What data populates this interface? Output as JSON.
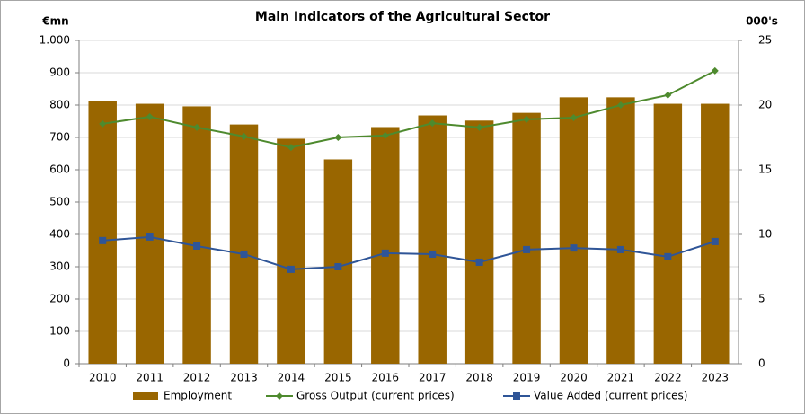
{
  "chart_data": {
    "type": "combo",
    "title": "Main Indicators of the Agricultural Sector",
    "y_label": "€mn",
    "y2_label": "000's",
    "categories": [
      "2010",
      "2011",
      "2012",
      "2013",
      "2014",
      "2015",
      "2016",
      "2017",
      "2018",
      "2019",
      "2020",
      "2021",
      "2022",
      "2023"
    ],
    "series": [
      {
        "name": "Employment",
        "type": "bar",
        "axis": "y2",
        "color": "#996600",
        "values": [
          20.3,
          20.1,
          19.9,
          18.5,
          17.4,
          15.8,
          18.3,
          19.2,
          18.8,
          19.4,
          20.6,
          20.6,
          20.1,
          20.1
        ]
      },
      {
        "name": "Gross Output (current prices)",
        "type": "line",
        "marker": "diamond",
        "color": "#4e8a2e",
        "values": [
          742,
          764,
          731,
          703,
          669,
          700,
          706,
          744,
          731,
          756,
          761,
          800,
          831,
          906
        ]
      },
      {
        "name": "Value Added (current prices)",
        "type": "line",
        "marker": "square",
        "color": "#2f5597",
        "values": [
          381,
          392,
          364,
          339,
          292,
          300,
          342,
          339,
          314,
          353,
          358,
          353,
          331,
          378
        ]
      }
    ],
    "ylim": [
      0,
      1000
    ],
    "yticks": [
      0,
      100,
      200,
      300,
      400,
      500,
      600,
      700,
      800,
      900,
      {
        "value": 1000,
        "label": "1.000"
      }
    ],
    "y2lim": [
      0,
      25
    ],
    "y2ticks": [
      0,
      5,
      10,
      15,
      20,
      25
    ],
    "grid": true,
    "legend": "bottom"
  }
}
